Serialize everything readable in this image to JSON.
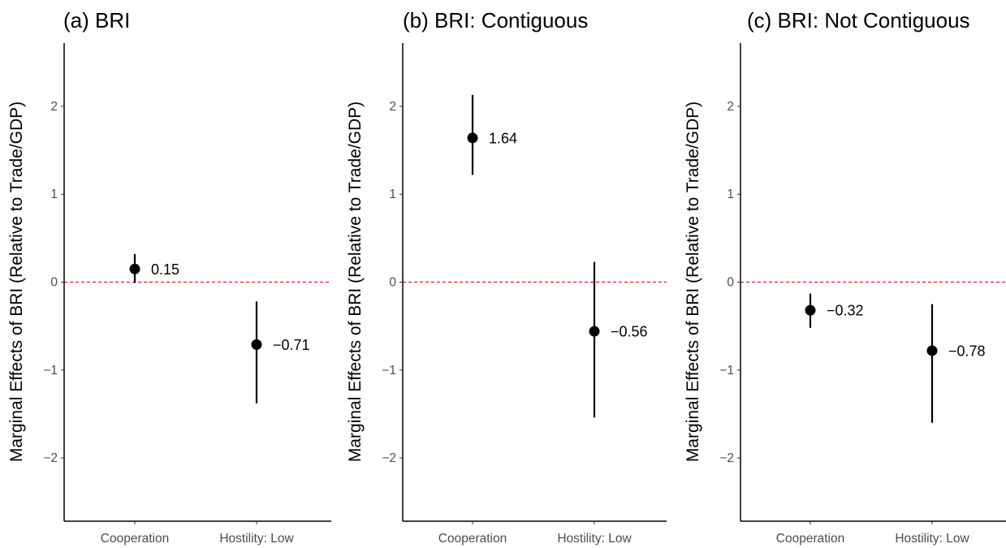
{
  "chart_data": [
    {
      "type": "scatter",
      "title": "(a) BRI",
      "ylabel": "Marginal Effects of BRI (Relative to Trade/GDP)",
      "xlabel": "",
      "categories": [
        "Cooperation",
        "Hostility: Low"
      ],
      "yticks": [
        "2",
        "1",
        "0",
        "−1",
        "−2"
      ],
      "ylim": [
        -2.72,
        2.72
      ],
      "reference_line": 0,
      "points": [
        {
          "category": "Cooperation",
          "estimate": 0.15,
          "lower": -0.01,
          "upper": 0.32,
          "label": "0.15"
        },
        {
          "category": "Hostility: Low",
          "estimate": -0.71,
          "lower": -1.38,
          "upper": -0.22,
          "label": "−0.71"
        }
      ]
    },
    {
      "type": "scatter",
      "title": "(b) BRI: Contiguous",
      "ylabel": "Marginal Effects of BRI (Relative to Trade/GDP)",
      "xlabel": "",
      "categories": [
        "Cooperation",
        "Hostility: Low"
      ],
      "yticks": [
        "2",
        "1",
        "0",
        "−1",
        "−2"
      ],
      "ylim": [
        -2.72,
        2.72
      ],
      "reference_line": 0,
      "points": [
        {
          "category": "Cooperation",
          "estimate": 1.64,
          "lower": 1.22,
          "upper": 2.13,
          "label": "1.64"
        },
        {
          "category": "Hostility: Low",
          "estimate": -0.56,
          "lower": -1.54,
          "upper": 0.23,
          "label": "−0.56"
        }
      ]
    },
    {
      "type": "scatter",
      "title": "(c) BRI: Not Contiguous",
      "ylabel": "Marginal Effects of BRI (Relative to Trade/GDP)",
      "xlabel": "",
      "categories": [
        "Cooperation",
        "Hostility: Low"
      ],
      "yticks": [
        "2",
        "1",
        "0",
        "−1",
        "−2"
      ],
      "ylim": [
        -2.72,
        2.72
      ],
      "reference_line": 0,
      "points": [
        {
          "category": "Cooperation",
          "estimate": -0.32,
          "lower": -0.52,
          "upper": -0.13,
          "label": "−0.32"
        },
        {
          "category": "Hostility: Low",
          "estimate": -0.78,
          "lower": -1.6,
          "upper": -0.25,
          "label": "−0.78"
        }
      ]
    }
  ],
  "colors": {
    "point": "#000000",
    "reference_line": "#e41a1c",
    "axis": "#000000",
    "tick_text": "#4d4d4d"
  }
}
